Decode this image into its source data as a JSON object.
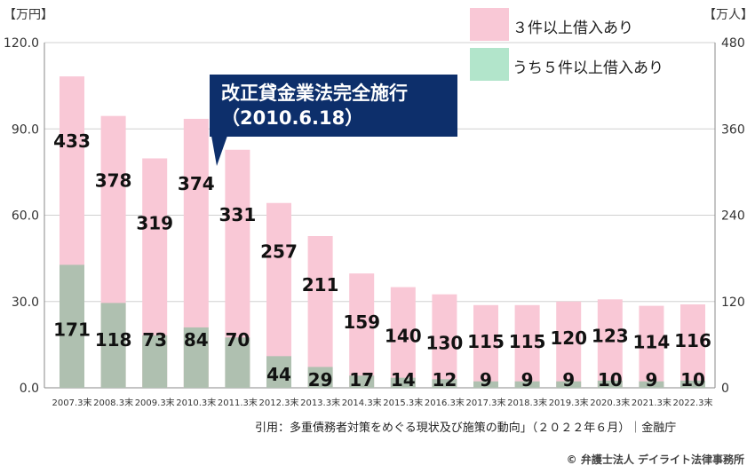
{
  "left_axis_unit": "【万円】",
  "right_axis_unit": "【万人】",
  "legend": [
    {
      "label": "３件以上借入あり",
      "color": "#f9c8d6"
    },
    {
      "label": "うち５件以上借入あり",
      "color": "#b2e5cb"
    }
  ],
  "callout": {
    "title": "改正貸金業法完全施行",
    "date": "（2010.6.18）",
    "color": "#0d2f6b"
  },
  "source": "引用：多重債務者対策をめぐる現状及び施策の動向」（２０２２年６月）｜金融庁",
  "copyright": "© 弁護士法人 デイライト法律事務所",
  "chart_data": {
    "type": "bar",
    "categories": [
      "2007.3末",
      "2008.3末",
      "2009.3末",
      "2010.3末",
      "2011.3末",
      "2012.3末",
      "2013.3末",
      "2014.3末",
      "2015.3末",
      "2016.3末",
      "2017.3末",
      "2018.3末",
      "2019.3末",
      "2020.3末",
      "2021.3末",
      "2022.3末"
    ],
    "series": [
      {
        "name": "３件以上借入あり",
        "color": "#f9c8d6",
        "values": [
          433,
          378,
          319,
          374,
          331,
          257,
          211,
          159,
          140,
          130,
          115,
          115,
          120,
          123,
          114,
          116
        ]
      },
      {
        "name": "うち５件以上借入あり",
        "color": "#b2e5cb",
        "values": [
          171,
          118,
          73,
          84,
          70,
          44,
          29,
          17,
          14,
          12,
          9,
          9,
          9,
          10,
          9,
          10
        ]
      }
    ],
    "left_axis": {
      "unit": "【万円】",
      "ticks": [
        "0.0",
        "30.0",
        "60.0",
        "90.0",
        "120.0"
      ],
      "range": [
        0,
        120
      ]
    },
    "right_axis": {
      "unit": "【万人】",
      "ticks": [
        "0",
        "120",
        "240",
        "360",
        "480"
      ],
      "range": [
        0,
        480
      ]
    },
    "overlay_note": "bars overlap; lower portion drawn in grayish green",
    "overlap_color": "#afc0b0"
  }
}
